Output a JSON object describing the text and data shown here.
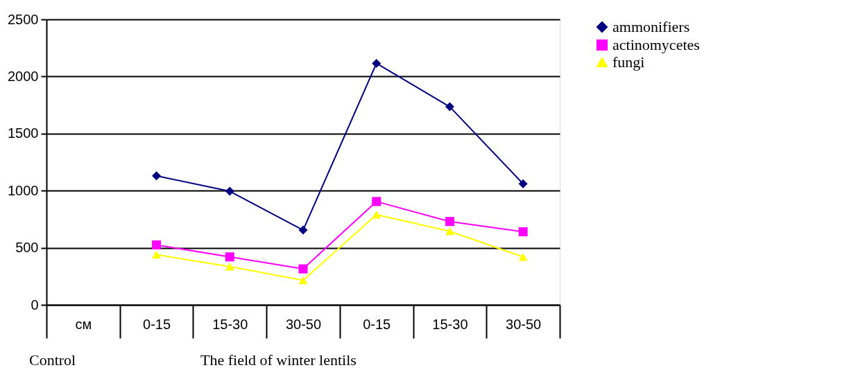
{
  "chart_data": {
    "type": "line",
    "categories": [
      "см",
      "0-15",
      "15-30",
      "30-50",
      "0-15",
      "15-30",
      "30-50"
    ],
    "series": [
      {
        "name": "ammonifiers",
        "color": "#000080",
        "marker": "diamond",
        "values": [
          null,
          1130,
          995,
          655,
          2115,
          1735,
          1060
        ]
      },
      {
        "name": "actinomycetes",
        "color": "#ff00ff",
        "marker": "square",
        "values": [
          null,
          525,
          420,
          315,
          905,
          730,
          640
        ]
      },
      {
        "name": "fungi",
        "color": "#ffff00",
        "marker": "triangle",
        "values": [
          null,
          440,
          335,
          215,
          790,
          645,
          420
        ]
      }
    ],
    "ylim": [
      0,
      2500
    ],
    "yticks": [
      0,
      500,
      1000,
      1500,
      2000,
      2500
    ],
    "grid": "y",
    "legend": "top right",
    "line_style": "solid",
    "annotations": [
      "Control",
      "The field of winter lentils"
    ]
  }
}
